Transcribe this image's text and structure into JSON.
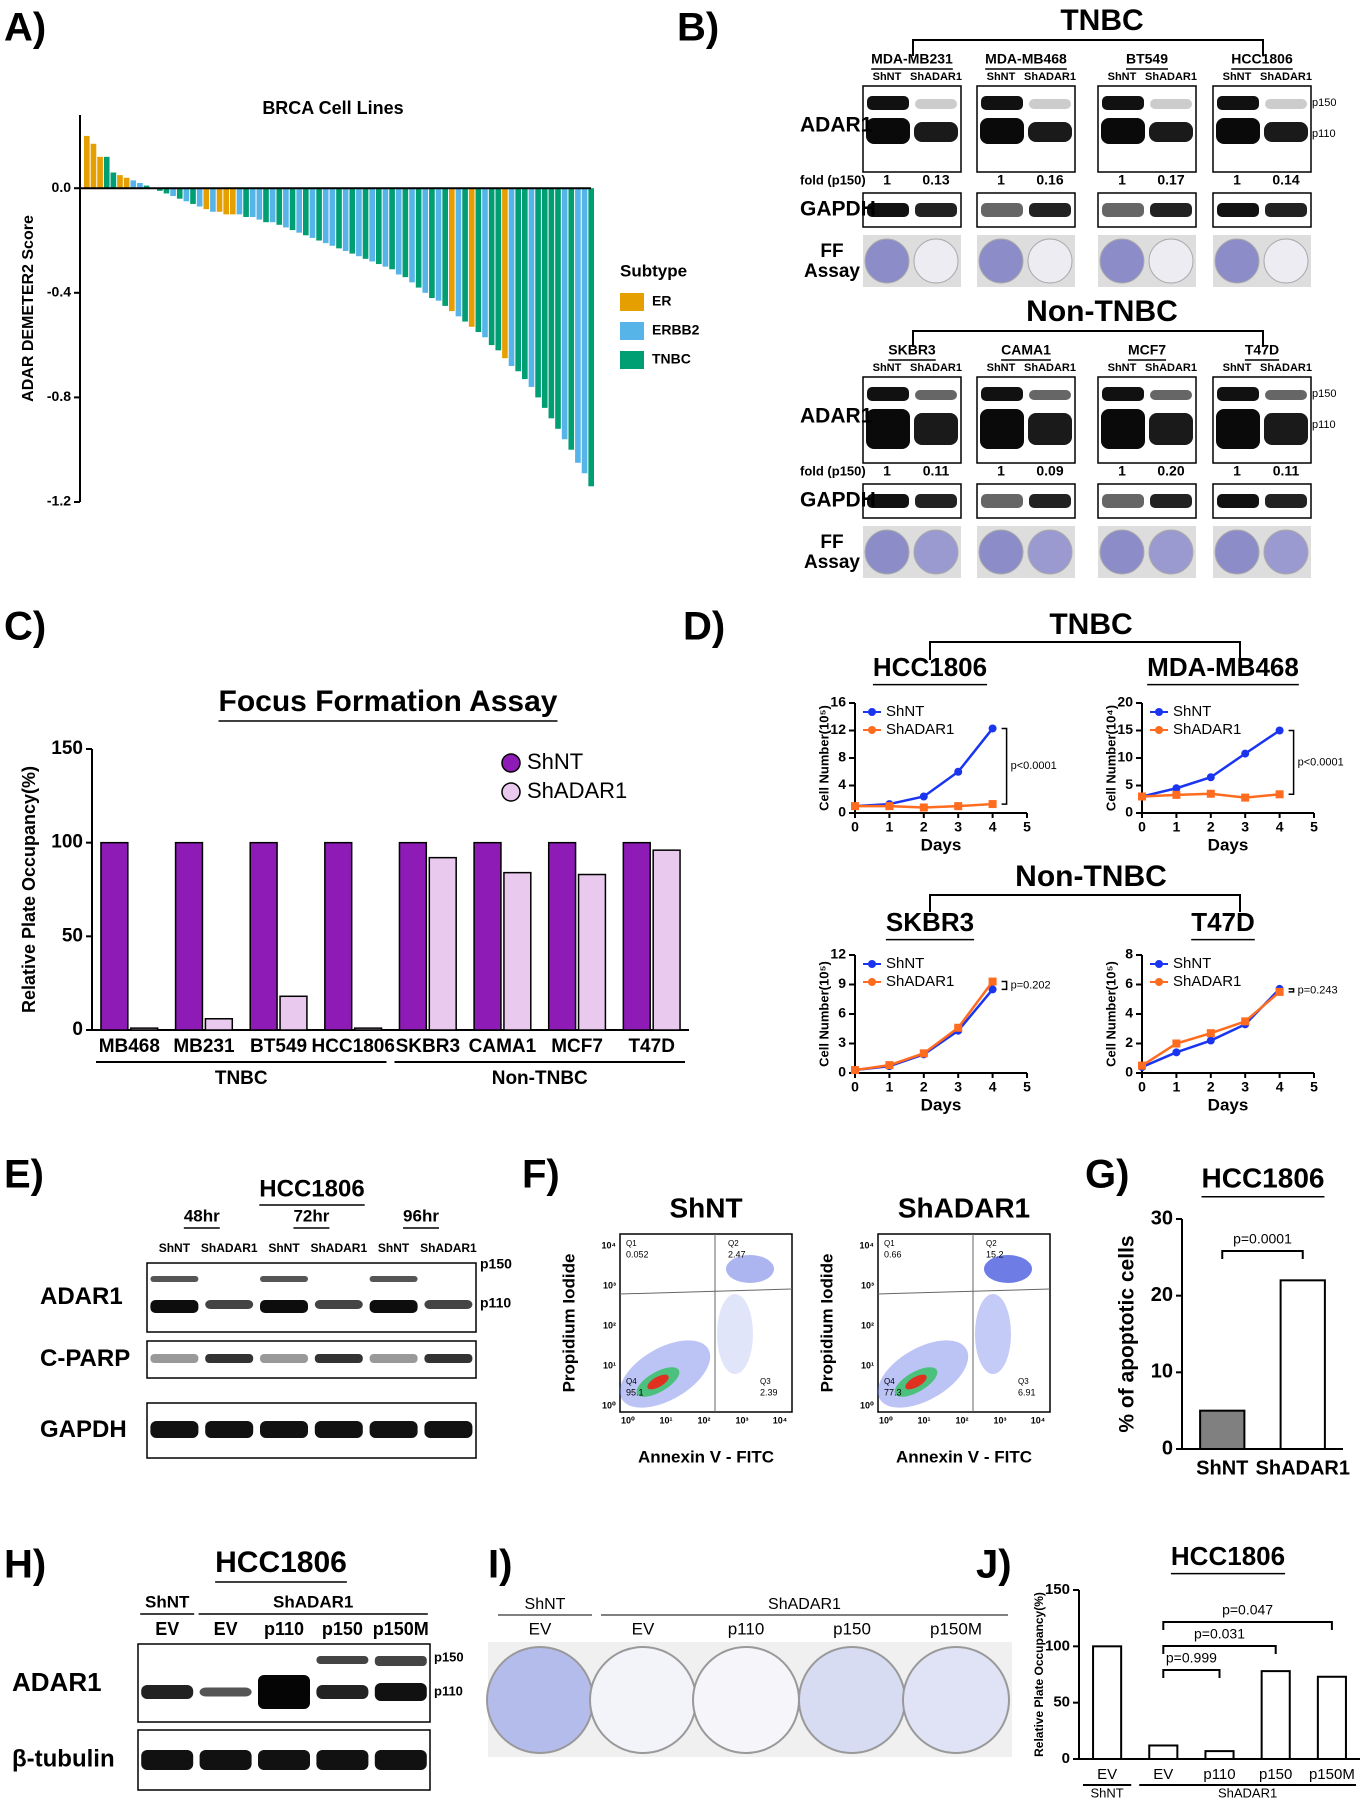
{
  "chart_data": [
    {
      "type": "bar",
      "panel": "A)",
      "title": "BRCA Cell Lines",
      "y_label": "ADAR DEMETER2 Score",
      "legend_title": "Subtype",
      "ylim": [
        -1.2,
        0.28
      ],
      "yticks": [
        {
          "value": 0,
          "label": "0.0"
        },
        -0.4,
        -0.8,
        -1.2
      ],
      "series": [
        {
          "name": "ER",
          "color": "#e69f00",
          "values": [
            0.2,
            0.17,
            0.12,
            null,
            null,
            0.05,
            0.04,
            null,
            null,
            null,
            null,
            null,
            null,
            null,
            null,
            null,
            null,
            null,
            -0.08,
            null,
            -0.09,
            -0.1,
            -0.1,
            null,
            null,
            null,
            null,
            null,
            null,
            null,
            null,
            null,
            null,
            null,
            null,
            null,
            null,
            null,
            null,
            null,
            null,
            null,
            null,
            null,
            null,
            null,
            null,
            null,
            null,
            null,
            null,
            null,
            null,
            null,
            null,
            -0.47,
            null,
            null,
            -0.53,
            null,
            null,
            null,
            null,
            -0.65,
            null,
            null,
            null,
            null,
            null,
            null,
            null,
            null,
            null,
            null,
            null,
            null,
            null
          ]
        },
        {
          "name": "ERBB2",
          "color": "#56b4e9",
          "values": [
            null,
            null,
            null,
            null,
            null,
            null,
            null,
            0.03,
            0.02,
            null,
            null,
            null,
            null,
            -0.03,
            null,
            -0.05,
            null,
            -0.07,
            null,
            -0.09,
            null,
            null,
            null,
            -0.1,
            null,
            -0.11,
            -0.12,
            null,
            -0.13,
            null,
            -0.15,
            null,
            -0.17,
            null,
            -0.19,
            null,
            -0.21,
            -0.22,
            null,
            -0.24,
            null,
            -0.26,
            null,
            -0.28,
            null,
            -0.3,
            null,
            -0.33,
            null,
            -0.36,
            null,
            -0.4,
            null,
            -0.43,
            null,
            null,
            -0.49,
            null,
            null,
            null,
            -0.57,
            null,
            null,
            null,
            -0.68,
            null,
            null,
            -0.76,
            null,
            null,
            null,
            null,
            -0.96,
            null,
            -1.05,
            -1.09,
            null
          ]
        },
        {
          "name": "TNBC",
          "color": "#009e73",
          "values": [
            null,
            null,
            null,
            0.12,
            0.06,
            null,
            null,
            null,
            null,
            0.01,
            0.0,
            -0.01,
            -0.02,
            null,
            -0.04,
            null,
            -0.06,
            null,
            null,
            null,
            null,
            null,
            null,
            null,
            -0.11,
            null,
            null,
            -0.13,
            null,
            -0.14,
            null,
            -0.16,
            null,
            -0.18,
            null,
            -0.2,
            null,
            null,
            -0.23,
            null,
            -0.25,
            null,
            -0.27,
            null,
            -0.29,
            null,
            -0.31,
            null,
            -0.34,
            null,
            -0.38,
            null,
            -0.42,
            null,
            -0.45,
            null,
            null,
            -0.51,
            null,
            -0.55,
            null,
            -0.6,
            -0.62,
            null,
            null,
            -0.7,
            -0.73,
            null,
            -0.8,
            -0.84,
            -0.88,
            -0.92,
            null,
            -1.0,
            null,
            null,
            -1.14
          ]
        }
      ]
    },
    {
      "type": "bar",
      "panel": "C)",
      "title": "Focus Formation Assay",
      "y_label": "Relative Plate Occupancy(%)",
      "categories": [
        "MB468",
        "MB231",
        "BT549",
        "HCC1806",
        "SKBR3",
        "CAMA1",
        "MCF7",
        "T47D"
      ],
      "groups": [
        {
          "label": "TNBC",
          "size": 4
        },
        {
          "label": "Non-TNBC",
          "size": 4
        }
      ],
      "ylim": [
        0,
        150
      ],
      "yticks": [
        0,
        50,
        100,
        150
      ],
      "series": [
        {
          "name": "ShNT",
          "color": "#8e1bb5",
          "values": [
            100,
            100,
            100,
            100,
            100,
            100,
            100,
            100
          ]
        },
        {
          "name": "ShADAR1",
          "color": "#eac9ee",
          "values": [
            1,
            6,
            18,
            1,
            92,
            84,
            83,
            96
          ]
        }
      ]
    },
    {
      "type": "line",
      "title": "HCC1806",
      "x_label": "Days",
      "y_label": "Cell Number(10⁵)",
      "x": [
        0,
        1,
        2,
        3,
        4
      ],
      "xlim": [
        0,
        5
      ],
      "xticks": [
        0,
        1,
        2,
        3,
        4,
        5
      ],
      "ylim": [
        0,
        16
      ],
      "yticks": [
        0,
        4,
        8,
        12,
        16
      ],
      "series": [
        {
          "name": "ShNT",
          "color": "#1a35f0",
          "values": [
            1,
            1.3,
            2.4,
            6,
            12.3
          ]
        },
        {
          "name": "ShADAR1",
          "color": "#ff6b1f",
          "values": [
            1,
            1,
            0.8,
            1,
            1.3
          ]
        }
      ],
      "annotations": [
        {
          "text": "p<0.0001"
        }
      ]
    },
    {
      "type": "line",
      "title": "MDA-MB468",
      "x_label": "Days",
      "y_label": "Cell Number(10⁴)",
      "x": [
        0,
        1,
        2,
        3,
        4
      ],
      "xlim": [
        0,
        5
      ],
      "xticks": [
        0,
        1,
        2,
        3,
        4,
        5
      ],
      "ylim": [
        0,
        20
      ],
      "yticks": [
        0,
        5,
        10,
        15,
        20
      ],
      "series": [
        {
          "name": "ShNT",
          "color": "#1a35f0",
          "values": [
            3,
            4.5,
            6.5,
            10.8,
            15
          ]
        },
        {
          "name": "ShADAR1",
          "color": "#ff6b1f",
          "values": [
            3,
            3.3,
            3.5,
            2.8,
            3.4
          ]
        }
      ],
      "annotations": [
        {
          "text": "p<0.0001"
        }
      ]
    },
    {
      "type": "line",
      "title": "SKBR3",
      "x_label": "Days",
      "y_label": "Cell Number(10⁵)",
      "x": [
        0,
        1,
        2,
        3,
        4
      ],
      "xlim": [
        0,
        5
      ],
      "xticks": [
        0,
        1,
        2,
        3,
        4,
        5
      ],
      "ylim": [
        0,
        12
      ],
      "yticks": [
        0,
        3,
        6,
        9,
        12
      ],
      "series": [
        {
          "name": "ShNT",
          "color": "#1a35f0",
          "values": [
            0.3,
            0.7,
            1.9,
            4.3,
            8.5
          ]
        },
        {
          "name": "ShADAR1",
          "color": "#ff6b1f",
          "values": [
            0.3,
            0.8,
            2,
            4.6,
            9.3
          ]
        }
      ],
      "annotations": [
        {
          "text": "p=0.202"
        }
      ]
    },
    {
      "type": "line",
      "title": "T47D",
      "x_label": "Days",
      "y_label": "Cell Number(10⁵)",
      "x": [
        0,
        1,
        2,
        3,
        4
      ],
      "xlim": [
        0,
        5
      ],
      "xticks": [
        0,
        1,
        2,
        3,
        4,
        5
      ],
      "ylim": [
        0,
        8
      ],
      "yticks": [
        0,
        2,
        4,
        6,
        8
      ],
      "series": [
        {
          "name": "ShNT",
          "color": "#1a35f0",
          "values": [
            0.4,
            1.4,
            2.2,
            3.3,
            5.7
          ]
        },
        {
          "name": "ShADAR1",
          "color": "#ff6b1f",
          "values": [
            0.5,
            2,
            2.7,
            3.5,
            5.5
          ]
        }
      ],
      "annotations": [
        {
          "text": "p=0.243"
        }
      ]
    },
    {
      "type": "bar",
      "panel": "G)",
      "title": "HCC1806",
      "y_label": "% of apoptotic cells",
      "categories": [
        "ShNT",
        "ShADAR1"
      ],
      "values": [
        5,
        22
      ],
      "colors": [
        "#808080",
        "#ffffff"
      ],
      "ylim": [
        0,
        30
      ],
      "yticks": [
        0,
        10,
        20,
        30
      ],
      "annotations": [
        {
          "text": "p=0.0001",
          "from": 0,
          "to": 1
        }
      ]
    },
    {
      "type": "bar",
      "panel": "J)",
      "title": "HCC1806",
      "y_label": "Relative Plate Occupancy(%)",
      "categories": [
        "EV",
        "EV",
        "p110",
        "p150",
        "p150M"
      ],
      "groups": [
        {
          "label": "ShNT",
          "size": 1
        },
        {
          "label": "ShADAR1",
          "size": 4
        }
      ],
      "values": [
        100,
        12,
        7,
        78,
        73
      ],
      "colors": [
        "#ffffff",
        "#ffffff",
        "#ffffff",
        "#ffffff",
        "#ffffff"
      ],
      "ylim": [
        0,
        150
      ],
      "yticks": [
        0,
        50,
        100,
        150
      ],
      "annotations": [
        {
          "text": "p=0.999",
          "from": 1,
          "to": 2
        },
        {
          "text": "p=0.031",
          "from": 1,
          "to": 3
        },
        {
          "text": "p=0.047",
          "from": 1,
          "to": 4
        }
      ]
    }
  ],
  "panels": {
    "B": {
      "label": "B)",
      "lanes": [
        "ShNT",
        "ShADAR1"
      ],
      "rows": [
        "ADAR1",
        "fold (p150)",
        "GAPDH"
      ],
      "ff_assay": [
        "FF",
        "Assay"
      ],
      "bands": [
        "p150",
        "p110"
      ],
      "groups": [
        {
          "title": "TNBC",
          "lines": [
            {
              "name": "MDA-MB231",
              "fold": [
                "1",
                "0.13"
              ]
            },
            {
              "name": "MDA-MB468",
              "fold": [
                "1",
                "0.16"
              ]
            },
            {
              "name": "BT549",
              "fold": [
                "1",
                "0.17"
              ]
            },
            {
              "name": "HCC1806",
              "fold": [
                "1",
                "0.14"
              ]
            }
          ]
        },
        {
          "title": "Non-TNBC",
          "lines": [
            {
              "name": "SKBR3",
              "fold": [
                "1",
                "0.11"
              ]
            },
            {
              "name": "CAMA1",
              "fold": [
                "1",
                "0.09"
              ]
            },
            {
              "name": "MCF7",
              "fold": [
                "1",
                "0.20"
              ]
            },
            {
              "name": "T47D",
              "fold": [
                "1",
                "0.11"
              ]
            }
          ]
        }
      ]
    },
    "D": {
      "label": "D)",
      "groups": [
        "TNBC",
        "Non-TNBC"
      ]
    },
    "E": {
      "label": "E)",
      "title": "HCC1806",
      "times": [
        "48hr",
        "72hr",
        "96hr"
      ],
      "lanes": [
        "ShNT",
        "ShADAR1"
      ],
      "rows": [
        "ADAR1",
        "C-PARP",
        "GAPDH"
      ],
      "bands": [
        "p150",
        "p110"
      ]
    },
    "F": {
      "label": "F)",
      "x_label": "Annexin V - FITC",
      "y_label": "Propidium Iodide",
      "ticks": [
        "10⁰",
        "10¹",
        "10²",
        "10³",
        "10⁴"
      ],
      "plots": [
        {
          "title": "ShNT",
          "quadrants": [
            {
              "name": "Q1",
              "value": "0.052"
            },
            {
              "name": "Q2",
              "value": "2.47"
            },
            {
              "name": "Q4",
              "value": "95.1"
            },
            {
              "name": "Q3",
              "value": "2.39"
            }
          ]
        },
        {
          "title": "ShADAR1",
          "quadrants": [
            {
              "name": "Q1",
              "value": "0.66"
            },
            {
              "name": "Q2",
              "value": "15.2"
            },
            {
              "name": "Q4",
              "value": "77.3"
            },
            {
              "name": "Q3",
              "value": "6.91"
            }
          ]
        }
      ]
    },
    "H": {
      "label": "H)",
      "title": "HCC1806",
      "groups": [
        {
          "name": "ShNT",
          "lanes": [
            "EV"
          ]
        },
        {
          "name": "ShADAR1",
          "lanes": [
            "EV",
            "p110",
            "p150",
            "p150M"
          ]
        }
      ],
      "rows": [
        "ADAR1",
        "β-tubulin"
      ],
      "bands": [
        "p150",
        "p110"
      ]
    },
    "I": {
      "label": "I)",
      "groups": [
        {
          "name": "ShNT",
          "lanes": [
            "EV"
          ]
        },
        {
          "name": "ShADAR1",
          "lanes": [
            "EV",
            "p110",
            "p150",
            "p150M"
          ]
        }
      ]
    }
  }
}
